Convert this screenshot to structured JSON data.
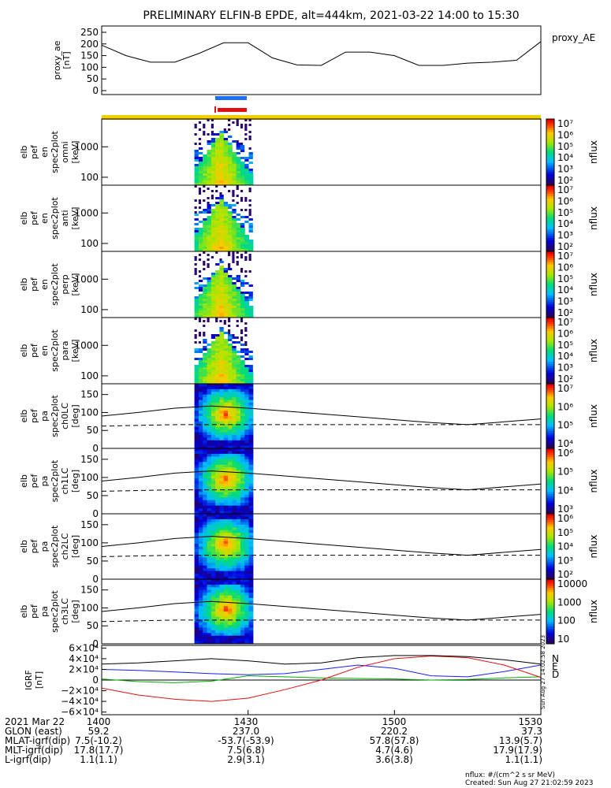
{
  "title": "PRELIMINARY ELFIN-B EPDE, alt=444km, 2021-03-22 14:00 to 15:30",
  "colors": {
    "blue_bar": "#1e6fff",
    "red_bar": "#e01010",
    "yellow_bar": "#f0d000",
    "bx": "#1a1aff",
    "by": "#00b000",
    "bz": "#e01010",
    "btot": "#000000"
  },
  "panels": [
    {
      "id": "ae",
      "ylabel": [
        "proxy_ae",
        "[nT]"
      ],
      "yticks": [
        "250",
        "200",
        "150",
        "100",
        "50",
        "0"
      ],
      "side_label": "proxy_AE"
    },
    {
      "id": "omni",
      "ylabel": [
        "elb",
        "pef",
        "en",
        "spec2plot",
        "omni",
        "[keV]"
      ],
      "yticks": [
        "1000",
        "100"
      ]
    },
    {
      "id": "anti",
      "ylabel": [
        "elb",
        "pef",
        "en",
        "spec2plot",
        "anti",
        "[keV]"
      ],
      "yticks": [
        "1000",
        "100"
      ]
    },
    {
      "id": "perp",
      "ylabel": [
        "elb",
        "pef",
        "en",
        "spec2plot",
        "perp",
        "[keV]"
      ],
      "yticks": [
        "1000",
        "100"
      ]
    },
    {
      "id": "para",
      "ylabel": [
        "elb",
        "pef",
        "en",
        "spec2plot",
        "para",
        "[keV]"
      ],
      "yticks": [
        "1000",
        "100"
      ]
    },
    {
      "id": "ch0",
      "ylabel": [
        "elb",
        "pef",
        "pa",
        "spec2plot",
        "ch0LC",
        "[deg]"
      ],
      "yticks": [
        "150",
        "100",
        "50",
        "0"
      ]
    },
    {
      "id": "ch1",
      "ylabel": [
        "elb",
        "pef",
        "pa",
        "spec2plot",
        "ch1LC",
        "[deg]"
      ],
      "yticks": [
        "150",
        "100",
        "50",
        "0"
      ]
    },
    {
      "id": "ch2",
      "ylabel": [
        "elb",
        "pef",
        "pa",
        "spec2plot",
        "ch2LC",
        "[deg]"
      ],
      "yticks": [
        "150",
        "100",
        "50",
        "0"
      ]
    },
    {
      "id": "ch3",
      "ylabel": [
        "elb",
        "pef",
        "pa",
        "spec2plot",
        "ch3LC",
        "[deg]"
      ],
      "yticks": [
        "150",
        "100",
        "50",
        "0"
      ]
    },
    {
      "id": "igrf",
      "ylabel": [
        "IGRF",
        "[nT]"
      ],
      "yticks": [
        "6×10⁴",
        "4×10⁴",
        "2×10⁴",
        "0",
        "−2×10⁴",
        "−4×10⁴",
        "−6×10⁴"
      ],
      "side_labels": [
        "N",
        "E",
        "D"
      ]
    }
  ],
  "colorbars": [
    {
      "ticks": [
        "10⁷",
        "10⁶",
        "10⁵",
        "10⁴",
        "10³",
        "10²"
      ],
      "label": "nflux"
    },
    {
      "ticks": [
        "10⁷",
        "10⁶",
        "10⁵",
        "10⁴",
        "10³",
        "10²"
      ],
      "label": "nflux"
    },
    {
      "ticks": [
        "10⁷",
        "10⁶",
        "10⁵",
        "10⁴",
        "10³",
        "10²"
      ],
      "label": "nflux"
    },
    {
      "ticks": [
        "10⁷",
        "10⁶",
        "10⁵",
        "10⁴",
        "10³",
        "10²"
      ],
      "label": "nflux"
    },
    {
      "ticks": [
        "10⁷",
        "10⁶",
        "10⁵",
        "10⁴"
      ],
      "label": "nflux"
    },
    {
      "ticks": [
        "10⁶",
        "10⁵",
        "10⁴",
        "10³"
      ],
      "label": "nflux"
    },
    {
      "ticks": [
        "10⁶",
        "10⁵",
        "10⁴",
        "10³",
        "10²"
      ],
      "label": "nflux"
    },
    {
      "ticks": [
        "10000",
        "1000",
        "100",
        "10"
      ],
      "label": "nflux"
    }
  ],
  "footer": {
    "rows": [
      {
        "label": "2021 Mar 22",
        "values": [
          "1400",
          "1430",
          "1500",
          "1530"
        ]
      },
      {
        "label": "GLON (east)",
        "values": [
          "59.2",
          "237.0",
          "220.2",
          "37.3"
        ]
      },
      {
        "label": "MLAT-igrf(dip)",
        "values": [
          "7.5(-10.2)",
          "-53.7(-53.9)",
          "57.8(57.8)",
          "13.9(5.7)"
        ]
      },
      {
        "label": "MLT-igrf(dip)",
        "values": [
          "17.8(17.7)",
          "7.5(6.8)",
          "4.7(4.6)",
          "17.9(17.9)"
        ]
      },
      {
        "label": "L-igrf(dip)",
        "values": [
          "1.1(1.1)",
          "2.9(3.1)",
          "3.6(3.8)",
          "1.1(1.1)"
        ]
      }
    ],
    "units_note": "nflux: #/(cm^2 s sr MeV)",
    "created": "Created: Sun Aug 27 21:02:59 2023",
    "side_stamp": "Sun Aug 27 14:02:58 2023"
  },
  "chart_data": [
    {
      "type": "line",
      "title": "proxy_AE",
      "ylabel": "proxy_ae [nT]",
      "ylim": [
        0,
        260
      ],
      "x": [
        "14:00",
        "14:05",
        "14:10",
        "14:15",
        "14:20",
        "14:25",
        "14:30",
        "14:35",
        "14:40",
        "14:45",
        "14:50",
        "14:55",
        "15:00",
        "15:05",
        "15:10",
        "15:15",
        "15:20",
        "15:25",
        "15:30"
      ],
      "values": [
        195,
        150,
        122,
        122,
        160,
        205,
        205,
        140,
        110,
        108,
        165,
        165,
        150,
        108,
        108,
        118,
        122,
        130,
        210
      ]
    },
    {
      "type": "heatmap",
      "title": "omni",
      "ylabel": "elb pef en spec2plot omni [keV]",
      "x_range": [
        "14:19",
        "14:31"
      ],
      "y_log": true,
      "zlabel": "nflux"
    },
    {
      "type": "heatmap",
      "title": "anti",
      "ylabel": "elb pef en spec2plot anti [keV]",
      "x_range": [
        "14:19",
        "14:31"
      ],
      "y_log": true,
      "zlabel": "nflux"
    },
    {
      "type": "heatmap",
      "title": "perp",
      "ylabel": "elb pef en spec2plot perp [keV]",
      "x_range": [
        "14:19",
        "14:31"
      ],
      "y_log": true,
      "zlabel": "nflux"
    },
    {
      "type": "heatmap",
      "title": "para",
      "ylabel": "elb pef en spec2plot para [keV]",
      "x_range": [
        "14:19",
        "14:31"
      ],
      "y_log": true,
      "zlabel": "nflux"
    },
    {
      "type": "heatmap",
      "title": "ch0LC",
      "ylabel": "elb pef pa spec2plot ch0LC [deg]",
      "ylim": [
        0,
        180
      ],
      "zlabel": "nflux",
      "loss_cone_solid": [
        90,
        100,
        112,
        118,
        112,
        104,
        96,
        88,
        80,
        72,
        66,
        74,
        82
      ],
      "loss_cone_dashed": [
        62,
        64,
        66,
        66,
        66,
        66,
        66,
        66,
        66,
        66,
        66,
        66,
        66
      ]
    },
    {
      "type": "heatmap",
      "title": "ch1LC",
      "ylabel": "elb pef pa spec2plot ch1LC [deg]",
      "ylim": [
        0,
        180
      ],
      "zlabel": "nflux",
      "loss_cone_solid": [
        90,
        100,
        112,
        118,
        112,
        104,
        96,
        88,
        80,
        72,
        66,
        74,
        82
      ],
      "loss_cone_dashed": [
        62,
        64,
        66,
        66,
        66,
        66,
        66,
        66,
        66,
        66,
        66,
        66,
        66
      ]
    },
    {
      "type": "heatmap",
      "title": "ch2LC",
      "ylabel": "elb pef pa spec2plot ch2LC [deg]",
      "ylim": [
        0,
        180
      ],
      "zlabel": "nflux",
      "loss_cone_solid": [
        90,
        100,
        112,
        118,
        112,
        104,
        96,
        88,
        80,
        72,
        66,
        74,
        82
      ],
      "loss_cone_dashed": [
        62,
        64,
        66,
        66,
        66,
        66,
        66,
        66,
        66,
        66,
        66,
        66,
        66
      ]
    },
    {
      "type": "heatmap",
      "title": "ch3LC",
      "ylabel": "elb pef pa spec2plot ch3LC [deg]",
      "ylim": [
        0,
        180
      ],
      "zlabel": "nflux",
      "loss_cone_solid": [
        90,
        100,
        112,
        118,
        112,
        104,
        96,
        88,
        80,
        72,
        66,
        74,
        82
      ],
      "loss_cone_dashed": [
        62,
        64,
        66,
        66,
        66,
        66,
        66,
        66,
        66,
        66,
        66,
        66,
        66
      ]
    },
    {
      "type": "line",
      "title": "IGRF",
      "ylabel": "IGRF [nT]",
      "ylim": [
        -65000,
        65000
      ],
      "x": [
        "14:00",
        "14:07.5",
        "14:15",
        "14:22.5",
        "14:30",
        "14:37.5",
        "14:45",
        "14:52.5",
        "15:00",
        "15:07.5",
        "15:15",
        "15:22.5",
        "15:30"
      ],
      "series": [
        {
          "name": "N",
          "values": [
            20000,
            18000,
            15000,
            12000,
            10000,
            12000,
            20000,
            28000,
            22000,
            8000,
            6000,
            16000,
            28000
          ]
        },
        {
          "name": "E",
          "values": [
            2000,
            -3000,
            -5000,
            -2000,
            8000,
            6000,
            4000,
            3000,
            2000,
            0,
            1000,
            4000,
            6000
          ]
        },
        {
          "name": "D",
          "values": [
            -15000,
            -28000,
            -36000,
            -40000,
            -34000,
            -18000,
            0,
            24000,
            40000,
            45000,
            42000,
            28000,
            5000
          ]
        },
        {
          "values": [
            30000,
            32000,
            36000,
            40000,
            36000,
            30000,
            32000,
            42000,
            46000,
            46000,
            44000,
            38000,
            30000
          ]
        }
      ]
    }
  ]
}
